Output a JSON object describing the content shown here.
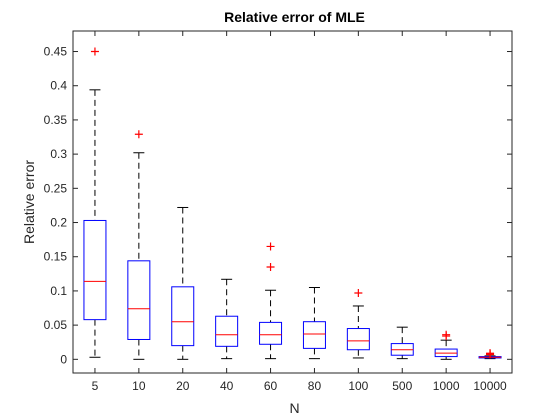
{
  "chart_data": {
    "type": "boxplot",
    "title": "Relative error of MLE",
    "xlabel": "N",
    "ylabel": "Relative error",
    "categories": [
      "5",
      "10",
      "20",
      "40",
      "60",
      "80",
      "100",
      "500",
      "1000",
      "10000"
    ],
    "ylim": [
      -0.02,
      0.48
    ],
    "yticks": [
      0,
      0.05,
      0.1,
      0.15,
      0.2,
      0.25,
      0.3,
      0.35,
      0.4,
      0.45
    ],
    "ytick_labels": [
      "0",
      "0.05",
      "0.1",
      "0.15",
      "0.2",
      "0.25",
      "0.3",
      "0.35",
      "0.4",
      "0.45"
    ],
    "grid": false,
    "boxes": [
      {
        "category": "5",
        "whisker_low": 0.003,
        "q1": 0.058,
        "median": 0.114,
        "q3": 0.203,
        "whisker_high": 0.394,
        "outliers": [
          0.45
        ]
      },
      {
        "category": "10",
        "whisker_low": 0.0,
        "q1": 0.029,
        "median": 0.074,
        "q3": 0.144,
        "whisker_high": 0.302,
        "outliers": [
          0.329
        ]
      },
      {
        "category": "20",
        "whisker_low": 0.0,
        "q1": 0.02,
        "median": 0.055,
        "q3": 0.106,
        "whisker_high": 0.222,
        "outliers": []
      },
      {
        "category": "40",
        "whisker_low": 0.001,
        "q1": 0.019,
        "median": 0.036,
        "q3": 0.063,
        "whisker_high": 0.117,
        "outliers": []
      },
      {
        "category": "60",
        "whisker_low": 0.001,
        "q1": 0.022,
        "median": 0.036,
        "q3": 0.054,
        "whisker_high": 0.101,
        "outliers": [
          0.135,
          0.165
        ]
      },
      {
        "category": "80",
        "whisker_low": 0.001,
        "q1": 0.016,
        "median": 0.037,
        "q3": 0.055,
        "whisker_high": 0.105,
        "outliers": []
      },
      {
        "category": "100",
        "whisker_low": 0.002,
        "q1": 0.014,
        "median": 0.027,
        "q3": 0.045,
        "whisker_high": 0.078,
        "outliers": [
          0.097
        ]
      },
      {
        "category": "500",
        "whisker_low": 0.001,
        "q1": 0.006,
        "median": 0.014,
        "q3": 0.023,
        "whisker_high": 0.047,
        "outliers": []
      },
      {
        "category": "1000",
        "whisker_low": 0.0,
        "q1": 0.004,
        "median": 0.009,
        "q3": 0.015,
        "whisker_high": 0.028,
        "outliers": [
          0.034,
          0.036
        ]
      },
      {
        "category": "10000",
        "whisker_low": 0.001,
        "q1": 0.002,
        "median": 0.003,
        "q3": 0.004,
        "whisker_high": 0.005,
        "outliers": [
          0.007,
          0.008,
          0.009
        ]
      }
    ],
    "colors": {
      "box": "#0000ff",
      "median": "#ff0000",
      "outlier": "#ff0000",
      "whisker": "#000000",
      "axis": "#262626"
    }
  }
}
